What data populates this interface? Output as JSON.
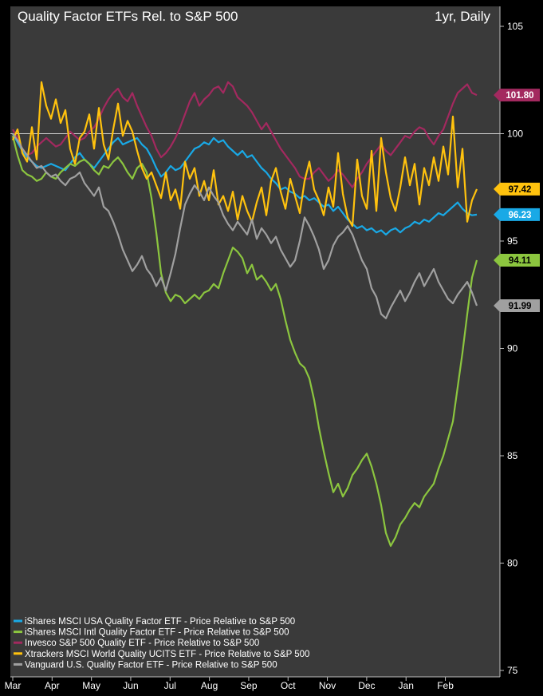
{
  "chart_data": {
    "type": "line",
    "title": "Quality Factor ETFs Rel. to S&P 500",
    "subtitle": "1yr, Daily",
    "xlabel": "",
    "ylabel": "",
    "ylim": [
      75,
      105
    ],
    "y_ticks": [
      75,
      80,
      85,
      90,
      95,
      100,
      105
    ],
    "reference_line": 100,
    "x_tick_labels": [
      "Mar",
      "Apr",
      "May",
      "Jun",
      "Jul",
      "Aug",
      "Sep",
      "Oct",
      "Nov",
      "Dec",
      "Jan",
      "Feb"
    ],
    "grid": false,
    "legend_position": "bottom-left",
    "series": [
      {
        "name": "iShares MSCI USA Quality Factor ETF - Price Relative to S&P 500",
        "color": "#19a9e6",
        "last_label": "96.23",
        "values": [
          100.0,
          99.6,
          99.2,
          98.9,
          98.7,
          98.5,
          98.4,
          98.5,
          98.6,
          98.5,
          98.4,
          98.3,
          98.6,
          98.9,
          99.1,
          98.8,
          98.6,
          98.4,
          98.7,
          99.0,
          99.3,
          99.6,
          99.8,
          99.5,
          99.6,
          99.7,
          99.8,
          99.5,
          99.3,
          98.9,
          98.4,
          98.0,
          98.2,
          98.5,
          98.3,
          98.4,
          98.7,
          99.0,
          99.3,
          99.4,
          99.6,
          99.5,
          99.8,
          99.6,
          99.7,
          99.4,
          99.2,
          99.0,
          99.2,
          98.9,
          99.0,
          98.7,
          98.4,
          98.2,
          97.9,
          97.7,
          97.4,
          97.5,
          97.3,
          97.2,
          97.0,
          97.1,
          96.9,
          97.0,
          96.8,
          96.6,
          96.7,
          96.4,
          96.6,
          96.3,
          96.0,
          95.8,
          95.6,
          95.7,
          95.5,
          95.6,
          95.4,
          95.5,
          95.3,
          95.5,
          95.6,
          95.4,
          95.6,
          95.7,
          95.9,
          95.8,
          96.0,
          95.9,
          96.1,
          96.3,
          96.2,
          96.4,
          96.6,
          96.8,
          96.5,
          96.3,
          96.2,
          96.23
        ]
      },
      {
        "name": "iShares MSCI Intl Quality Factor ETF - Price Relative to S&P 500",
        "color": "#8cc63f",
        "last_label": "94.11",
        "values": [
          99.9,
          99.0,
          98.3,
          98.1,
          98.0,
          97.8,
          97.9,
          98.2,
          98.0,
          97.9,
          98.2,
          98.4,
          98.6,
          98.5,
          98.7,
          98.8,
          98.6,
          98.3,
          98.1,
          98.5,
          98.4,
          98.7,
          98.9,
          98.6,
          98.2,
          97.9,
          98.4,
          98.6,
          98.2,
          97.0,
          95.4,
          93.5,
          92.6,
          92.2,
          92.5,
          92.4,
          92.1,
          92.3,
          92.5,
          92.3,
          92.6,
          92.7,
          93.0,
          92.8,
          93.5,
          94.1,
          94.7,
          94.5,
          94.2,
          93.5,
          93.9,
          93.2,
          93.4,
          93.1,
          92.7,
          93.0,
          92.3,
          91.3,
          90.4,
          89.8,
          89.3,
          89.1,
          88.6,
          87.6,
          86.3,
          85.2,
          84.2,
          83.3,
          83.7,
          83.1,
          83.5,
          84.1,
          84.4,
          84.8,
          85.1,
          84.5,
          83.7,
          82.7,
          81.4,
          80.8,
          81.2,
          81.8,
          82.1,
          82.5,
          82.8,
          82.6,
          83.1,
          83.4,
          83.7,
          84.4,
          85.0,
          85.8,
          86.6,
          88.2,
          89.8,
          91.6,
          93.3,
          94.11
        ]
      },
      {
        "name": "Invesco S&P 500 Quality ETF - Price Relative to S&P 500",
        "color": "#a3295f",
        "last_label": "101.80",
        "values": [
          100.2,
          99.8,
          99.3,
          99.0,
          99.1,
          99.4,
          99.6,
          99.8,
          99.6,
          99.4,
          99.5,
          99.8,
          100.1,
          99.9,
          99.7,
          99.8,
          100.1,
          100.3,
          100.7,
          101.2,
          101.6,
          101.9,
          102.1,
          101.7,
          101.5,
          101.9,
          101.3,
          100.8,
          100.3,
          99.9,
          99.3,
          98.9,
          99.1,
          99.4,
          99.8,
          100.3,
          100.9,
          101.5,
          101.9,
          101.3,
          101.6,
          101.8,
          102.1,
          102.2,
          101.9,
          102.4,
          102.2,
          101.7,
          101.5,
          101.3,
          101.0,
          100.6,
          100.2,
          100.5,
          100.1,
          99.7,
          99.3,
          99.0,
          98.7,
          98.4,
          98.0,
          97.9,
          97.9,
          98.2,
          98.4,
          98.1,
          97.8,
          98.0,
          98.3,
          98.1,
          97.8,
          97.5,
          97.9,
          98.2,
          98.6,
          98.9,
          99.2,
          99.5,
          99.2,
          99.0,
          99.3,
          99.6,
          99.9,
          99.8,
          100.1,
          100.3,
          100.2,
          99.8,
          99.5,
          99.9,
          100.2,
          100.8,
          101.4,
          101.9,
          102.1,
          102.3,
          101.9,
          101.8
        ]
      },
      {
        "name": "Xtrackers MSCI World Quality UCITS ETF - Price Relative to S&P 500",
        "color": "#ffc20e",
        "last_label": "97.42",
        "values": [
          99.7,
          100.2,
          99.1,
          98.7,
          100.3,
          98.8,
          102.4,
          101.3,
          100.7,
          101.6,
          100.5,
          101.1,
          99.3,
          98.6,
          99.8,
          100.1,
          100.9,
          99.3,
          101.2,
          99.5,
          98.8,
          100.2,
          101.4,
          99.9,
          100.6,
          100.1,
          99.2,
          98.4,
          97.9,
          98.2,
          97.6,
          97.0,
          98.2,
          96.9,
          97.4,
          96.5,
          98.7,
          97.9,
          98.4,
          97.1,
          97.8,
          96.9,
          98.3,
          96.7,
          97.1,
          96.4,
          97.3,
          96.0,
          97.1,
          96.4,
          95.9,
          96.8,
          97.5,
          96.2,
          97.8,
          98.4,
          97.3,
          96.5,
          97.9,
          97.1,
          96.3,
          97.8,
          98.7,
          97.4,
          96.9,
          96.2,
          97.5,
          96.6,
          99.1,
          97.2,
          96.1,
          95.7,
          98.8,
          97.1,
          96.5,
          99.2,
          96.4,
          99.8,
          98.2,
          97.0,
          96.4,
          97.5,
          98.9,
          97.6,
          98.6,
          96.7,
          98.4,
          97.6,
          98.9,
          97.8,
          99.4,
          98.1,
          100.8,
          97.5,
          99.3,
          95.9,
          96.9,
          97.42
        ]
      },
      {
        "name": "Vanguard U.S. Quality Factor ETF - Price Relative to S&P 500",
        "color": "#a0a0a0",
        "last_label": "91.99",
        "values": [
          100.0,
          99.7,
          99.3,
          99.0,
          98.7,
          98.4,
          98.5,
          98.2,
          98.0,
          98.1,
          97.8,
          97.6,
          97.9,
          98.0,
          98.2,
          97.7,
          97.4,
          97.1,
          97.5,
          96.6,
          96.4,
          95.9,
          95.3,
          94.6,
          94.1,
          93.6,
          93.9,
          94.3,
          93.7,
          93.4,
          92.9,
          93.3,
          92.7,
          93.5,
          94.4,
          95.6,
          96.7,
          97.2,
          97.6,
          97.3,
          96.9,
          97.5,
          97.1,
          96.8,
          96.2,
          95.8,
          95.5,
          95.9,
          95.6,
          95.3,
          96.0,
          95.1,
          95.6,
          95.3,
          94.9,
          95.2,
          94.6,
          94.2,
          93.8,
          94.1,
          95.0,
          96.1,
          95.7,
          95.2,
          94.6,
          93.7,
          94.1,
          94.8,
          95.2,
          95.4,
          95.7,
          95.3,
          94.7,
          94.1,
          93.7,
          92.8,
          92.4,
          91.6,
          91.4,
          91.9,
          92.3,
          92.7,
          92.2,
          92.6,
          93.1,
          93.5,
          92.9,
          93.3,
          93.7,
          93.1,
          92.7,
          92.3,
          92.1,
          92.5,
          92.8,
          93.1,
          92.6,
          91.99
        ]
      }
    ]
  }
}
